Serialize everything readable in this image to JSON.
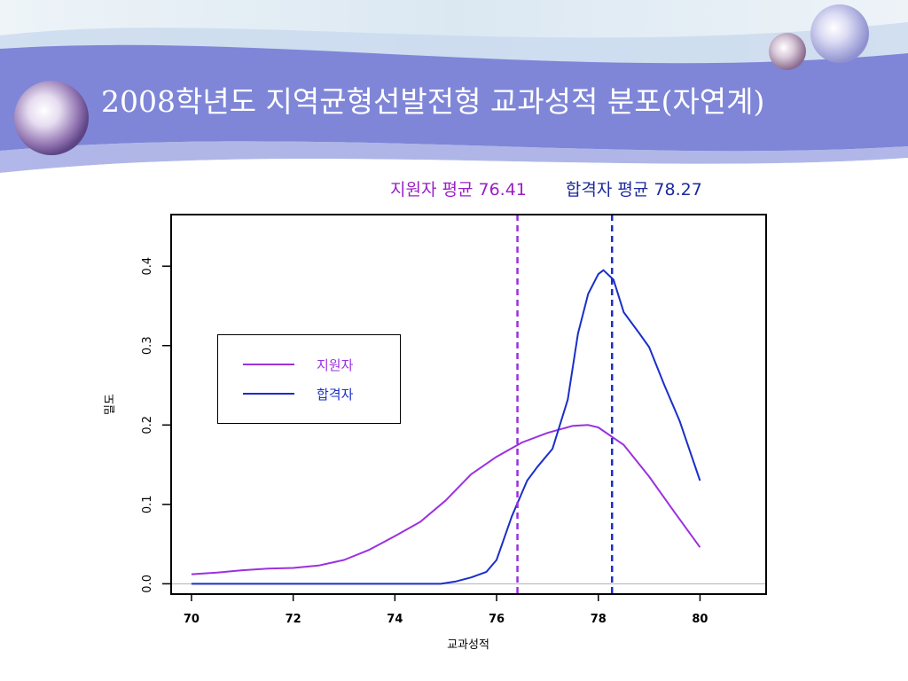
{
  "slide": {
    "title": "2008학년도 지역균형선발전형 교과성적 분포(자연계)"
  },
  "means": {
    "applicant_text": "지원자 평균  76.41",
    "admitted_text": "합격자 평균 78.27"
  },
  "colors": {
    "applicant": "#9b30e0",
    "admitted": "#1a2fc8",
    "banner": "#7f86d8"
  },
  "chart_data": {
    "type": "line",
    "title": "",
    "xlabel": "교과성적",
    "ylabel": "밀도",
    "xlim": [
      69.6,
      81.3
    ],
    "ylim": [
      -0.013,
      0.465
    ],
    "x_ticks": [
      70,
      72,
      74,
      76,
      78,
      80
    ],
    "x_tick_labels": [
      "70",
      "72",
      "74",
      "76",
      "78",
      "80"
    ],
    "y_ticks": [
      0.0,
      0.1,
      0.2,
      0.3,
      0.4
    ],
    "y_tick_labels": [
      "0.0",
      "0.1",
      "0.2",
      "0.3",
      "0.4"
    ],
    "legend": {
      "position": "upper-left",
      "entries": [
        "지원자",
        "합격자"
      ]
    },
    "series": [
      {
        "name": "지원자",
        "color": "#9b30e0",
        "x": [
          70,
          70.5,
          71,
          71.5,
          72,
          72.5,
          73,
          73.5,
          74,
          74.5,
          75,
          75.5,
          76,
          76.5,
          77,
          77.5,
          77.8,
          78,
          78.5,
          79,
          79.5,
          80
        ],
        "y": [
          0.012,
          0.014,
          0.017,
          0.019,
          0.02,
          0.023,
          0.03,
          0.043,
          0.06,
          0.078,
          0.105,
          0.138,
          0.16,
          0.178,
          0.19,
          0.199,
          0.2,
          0.197,
          0.175,
          0.135,
          0.09,
          0.046
        ]
      },
      {
        "name": "합격자",
        "color": "#1a2fc8",
        "x": [
          70,
          71,
          72,
          73,
          74,
          74.9,
          75.2,
          75.5,
          75.8,
          76,
          76.3,
          76.6,
          76.8,
          77.1,
          77.4,
          77.6,
          77.8,
          78,
          78.1,
          78.3,
          78.5,
          78.8,
          79,
          79.3,
          79.6,
          80
        ],
        "y": [
          0,
          0,
          0,
          0,
          0,
          0,
          0.003,
          0.008,
          0.015,
          0.03,
          0.085,
          0.13,
          0.147,
          0.17,
          0.232,
          0.315,
          0.365,
          0.39,
          0.395,
          0.383,
          0.342,
          0.316,
          0.298,
          0.25,
          0.205,
          0.13
        ]
      }
    ],
    "reference_lines": [
      {
        "series": "지원자",
        "x": 76.41,
        "color": "#9b30e0",
        "style": "dashed"
      },
      {
        "series": "합격자",
        "x": 78.27,
        "color": "#1a2fc8",
        "style": "dashed"
      }
    ]
  }
}
